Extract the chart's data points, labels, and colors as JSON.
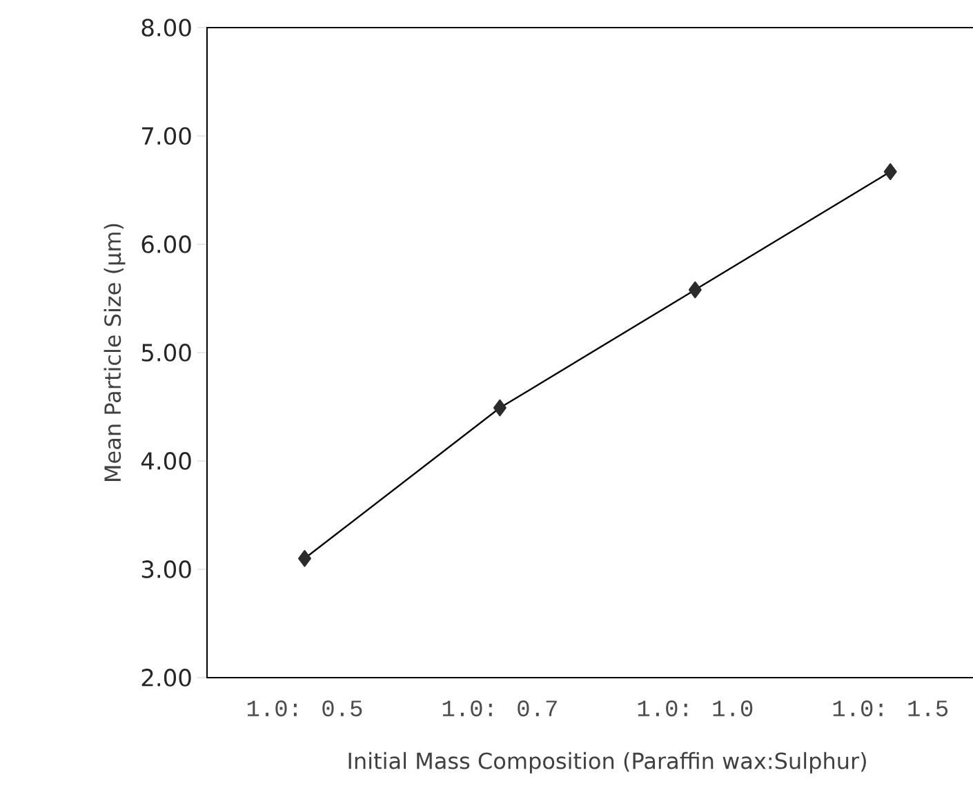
{
  "chart_data": {
    "type": "line",
    "xlabel": "Initial Mass Composition (Paraffin wax:Sulphur)",
    "ylabel": "Mean Particle Size (µm)",
    "categories": [
      "1.0: 0.5",
      "1.0: 0.7",
      "1.0: 1.0",
      "1.0: 1.5"
    ],
    "series": [
      {
        "color": "#2b2b2b",
        "values": [
          3.1,
          4.49,
          5.58,
          6.67
        ]
      }
    ],
    "ylim": [
      2,
      8
    ],
    "yticks": [
      {
        "value": 2,
        "label": "2.00"
      },
      {
        "value": 3,
        "label": "3.00"
      },
      {
        "value": 4,
        "label": "4.00"
      },
      {
        "value": 5,
        "label": "5.00"
      },
      {
        "value": 6,
        "label": "6.00"
      },
      {
        "value": 7,
        "label": "7.00"
      },
      {
        "value": 8,
        "label": "8.00"
      }
    ],
    "grid": false,
    "marker": "diamond",
    "line_style": "solid"
  }
}
